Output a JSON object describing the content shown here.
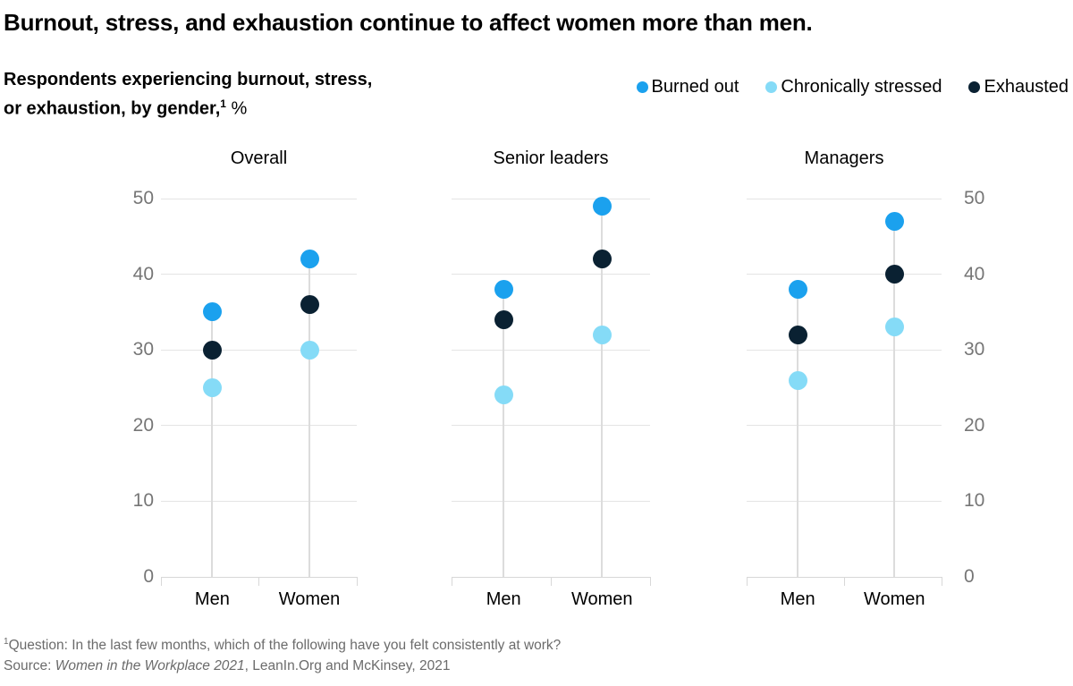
{
  "title": "Burnout, stress, and exhaustion continue to affect women more than men.",
  "subtitle": {
    "line1": "Respondents experiencing burnout, stress,",
    "line2": "or exhaustion, by gender,",
    "footnote_marker": "1",
    "unit": "%"
  },
  "chart_data": {
    "type": "scatter",
    "title": "Burnout, stress, and exhaustion continue to affect women more than men.",
    "subtitle": "Respondents experiencing burnout, stress, or exhaustion, by gender, %",
    "ylabel": "%",
    "ylim": [
      0,
      50
    ],
    "yticks": [
      0,
      10,
      20,
      30,
      40,
      50
    ],
    "grid": true,
    "legend_position": "top-right",
    "categories": [
      "Men",
      "Women"
    ],
    "series_meta": [
      {
        "name": "Burned out",
        "color": "#1ba1ee"
      },
      {
        "name": "Chronically stressed",
        "color": "#85dbf7"
      },
      {
        "name": "Exhausted",
        "color": "#0a2132"
      }
    ],
    "panels": [
      {
        "title": "Overall",
        "series": [
          {
            "name": "Burned out",
            "values": [
              35,
              42
            ]
          },
          {
            "name": "Chronically stressed",
            "values": [
              25,
              30
            ]
          },
          {
            "name": "Exhausted",
            "values": [
              30,
              36
            ]
          }
        ]
      },
      {
        "title": "Senior leaders",
        "series": [
          {
            "name": "Burned out",
            "values": [
              38,
              49
            ]
          },
          {
            "name": "Chronically stressed",
            "values": [
              24,
              32
            ]
          },
          {
            "name": "Exhausted",
            "values": [
              34,
              42
            ]
          }
        ]
      },
      {
        "title": "Managers",
        "series": [
          {
            "name": "Burned out",
            "values": [
              38,
              47
            ]
          },
          {
            "name": "Chronically stressed",
            "values": [
              26,
              33
            ]
          },
          {
            "name": "Exhausted",
            "values": [
              32,
              40
            ]
          }
        ]
      }
    ]
  },
  "footnote": {
    "marker": "1",
    "question": "Question: In the last few months, which of the following have you felt consistently at work?",
    "source_prefix": "Source: ",
    "source_italic": "Women in the Workplace 2021",
    "source_rest": ", LeanIn.Org and McKinsey, 2021"
  }
}
